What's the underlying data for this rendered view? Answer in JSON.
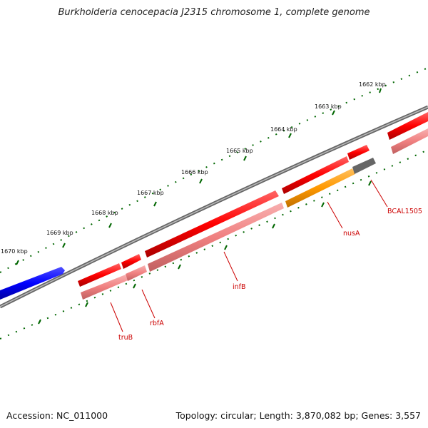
{
  "title": "Burkholderia cenocepacia J2315 chromosome 1, complete genome",
  "footer": {
    "accession": "Accession: NC_011000",
    "summary": "Topology: circular; Length: 3,870,082 bp; Genes: 3,557"
  },
  "ticks": [
    "1662 kbp",
    "1663 kbp",
    "1664 kbp",
    "1665 kbp",
    "1666 kbp",
    "1667 kbp",
    "1668 kbp",
    "1669 kbp",
    "1670 kbp"
  ],
  "gene_labels": [
    "truB",
    "rbfA",
    "infB",
    "nusA",
    "BCAL1505"
  ],
  "colors": {
    "forward_gene": "#ff0000",
    "reverse_gene_light": "#f08080",
    "nusA": "#ff9900",
    "BCAL1505": "#666666",
    "blue_gene": "#0000ff",
    "backbone": "#777777",
    "tick": "#006600",
    "label": "#cc0000"
  }
}
